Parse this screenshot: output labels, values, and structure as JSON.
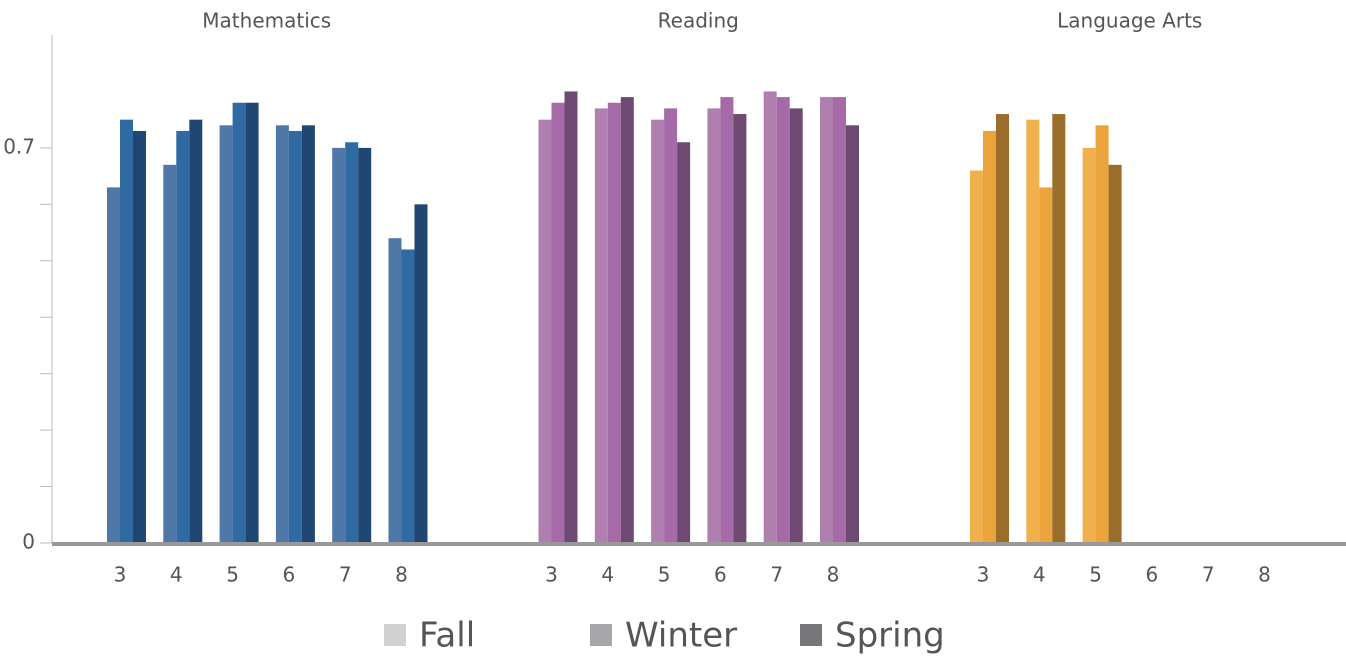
{
  "chart_data": {
    "type": "bar",
    "categories": [
      3,
      4,
      5,
      6,
      7,
      8
    ],
    "ylim": [
      0,
      0.9
    ],
    "yticks": [
      0,
      0.7
    ],
    "minor_yticks": [
      0.1,
      0.2,
      0.3,
      0.4,
      0.5,
      0.6
    ],
    "legend": [
      {
        "name": "Fall",
        "color": "#d0d0d0"
      },
      {
        "name": "Winter",
        "color": "#a7a7aa"
      },
      {
        "name": "Spring",
        "color": "#77777a"
      }
    ],
    "panels": [
      {
        "title": "Mathematics",
        "series": [
          {
            "color": "#4f78a8",
            "values": [
              0.63,
              0.67,
              0.74,
              0.74,
              0.7,
              0.54
            ]
          },
          {
            "color": "#2f6aa3",
            "values": [
              0.75,
              0.73,
              0.78,
              0.73,
              0.71,
              0.52
            ]
          },
          {
            "color": "#1f4772",
            "values": [
              0.73,
              0.75,
              0.78,
              0.74,
              0.7,
              0.6
            ]
          }
        ]
      },
      {
        "title": "Reading",
        "series": [
          {
            "color": "#b07fb0",
            "values": [
              0.75,
              0.77,
              0.75,
              0.77,
              0.8,
              0.79
            ]
          },
          {
            "color": "#a76aa8",
            "values": [
              0.78,
              0.78,
              0.77,
              0.79,
              0.79,
              0.79
            ]
          },
          {
            "color": "#6e4a72",
            "values": [
              0.8,
              0.79,
              0.71,
              0.76,
              0.77,
              0.74
            ]
          }
        ]
      },
      {
        "title": "Language Arts",
        "series": [
          {
            "color": "#f0b04c",
            "values": [
              0.66,
              0.75,
              0.7,
              null,
              null,
              null
            ]
          },
          {
            "color": "#eba43b",
            "values": [
              0.73,
              0.63,
              0.74,
              null,
              null,
              null
            ]
          },
          {
            "color": "#9b6d2a",
            "values": [
              0.76,
              0.76,
              0.67,
              null,
              null,
              null
            ]
          }
        ]
      }
    ]
  }
}
